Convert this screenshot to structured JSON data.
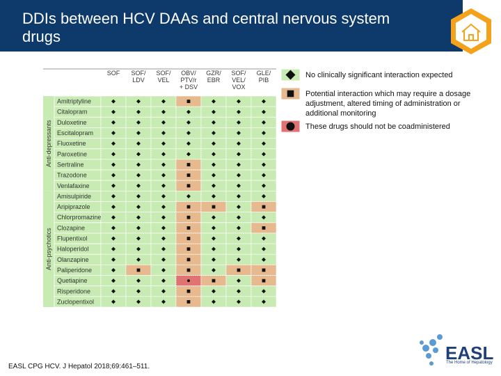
{
  "header": {
    "title": "DDIs between HCV DAAs and central nervous system drugs"
  },
  "table": {
    "columns": [
      [
        "SOF"
      ],
      [
        "SOF/",
        "LDV"
      ],
      [
        "SOF/",
        "VEL"
      ],
      [
        "OBV/",
        "PTV/r",
        "+ DSV"
      ],
      [
        "GZR/",
        "EBR"
      ],
      [
        "SOF/",
        "VEL/",
        "VOX"
      ],
      [
        "GLE/",
        "PIB"
      ]
    ],
    "groups": [
      {
        "label": "Anti-depressants",
        "rows": [
          {
            "drug": "Amitriptyline",
            "cells": [
              0,
              0,
              0,
              1,
              0,
              0,
              0
            ]
          },
          {
            "drug": "Citalopram",
            "cells": [
              0,
              0,
              0,
              0,
              0,
              0,
              0
            ]
          },
          {
            "drug": "Duloxetine",
            "cells": [
              0,
              0,
              0,
              0,
              0,
              0,
              0
            ]
          },
          {
            "drug": "Escitalopram",
            "cells": [
              0,
              0,
              0,
              0,
              0,
              0,
              0
            ]
          },
          {
            "drug": "Fluoxetine",
            "cells": [
              0,
              0,
              0,
              0,
              0,
              0,
              0
            ]
          },
          {
            "drug": "Paroxetine",
            "cells": [
              0,
              0,
              0,
              0,
              0,
              0,
              0
            ]
          },
          {
            "drug": "Sertraline",
            "cells": [
              0,
              0,
              0,
              1,
              0,
              0,
              0
            ]
          },
          {
            "drug": "Trazodone",
            "cells": [
              0,
              0,
              0,
              1,
              0,
              0,
              0
            ]
          },
          {
            "drug": "Venlafaxine",
            "cells": [
              0,
              0,
              0,
              1,
              0,
              0,
              0
            ]
          }
        ]
      },
      {
        "label": "Anti-psychotics",
        "rows": [
          {
            "drug": "Amisulpiride",
            "cells": [
              0,
              0,
              0,
              0,
              0,
              0,
              0
            ]
          },
          {
            "drug": "Aripiprazole",
            "cells": [
              0,
              0,
              0,
              1,
              1,
              0,
              1
            ]
          },
          {
            "drug": "Chlorpromazine",
            "cells": [
              0,
              0,
              0,
              1,
              0,
              0,
              0
            ]
          },
          {
            "drug": "Clozapine",
            "cells": [
              0,
              0,
              0,
              1,
              0,
              0,
              1
            ]
          },
          {
            "drug": "Flupentixol",
            "cells": [
              0,
              0,
              0,
              1,
              0,
              0,
              0
            ]
          },
          {
            "drug": "Haloperidol",
            "cells": [
              0,
              0,
              0,
              1,
              0,
              0,
              0
            ]
          },
          {
            "drug": "Olanzapine",
            "cells": [
              0,
              0,
              0,
              1,
              0,
              0,
              0
            ]
          },
          {
            "drug": "Paliperidone",
            "cells": [
              0,
              1,
              0,
              1,
              0,
              1,
              1
            ]
          },
          {
            "drug": "Quetiapine",
            "cells": [
              0,
              0,
              0,
              2,
              1,
              0,
              1
            ]
          },
          {
            "drug": "Risperidone",
            "cells": [
              0,
              0,
              0,
              1,
              0,
              0,
              0
            ]
          },
          {
            "drug": "Zuclopentixol",
            "cells": [
              0,
              0,
              0,
              1,
              0,
              0,
              0
            ]
          }
        ]
      }
    ]
  },
  "legend": [
    {
      "text": "No clinically significant interaction expected"
    },
    {
      "text": "Potential interaction which may require a dosage adjustment, altered timing of administration or additional monitoring"
    },
    {
      "text": "These drugs should not be coadministered"
    }
  ],
  "footer": {
    "citation": "EASL CPG HCV. J Hepatol 2018;69:461–511.",
    "logo": "EASL",
    "tagline": "The Home of Hepatology"
  }
}
